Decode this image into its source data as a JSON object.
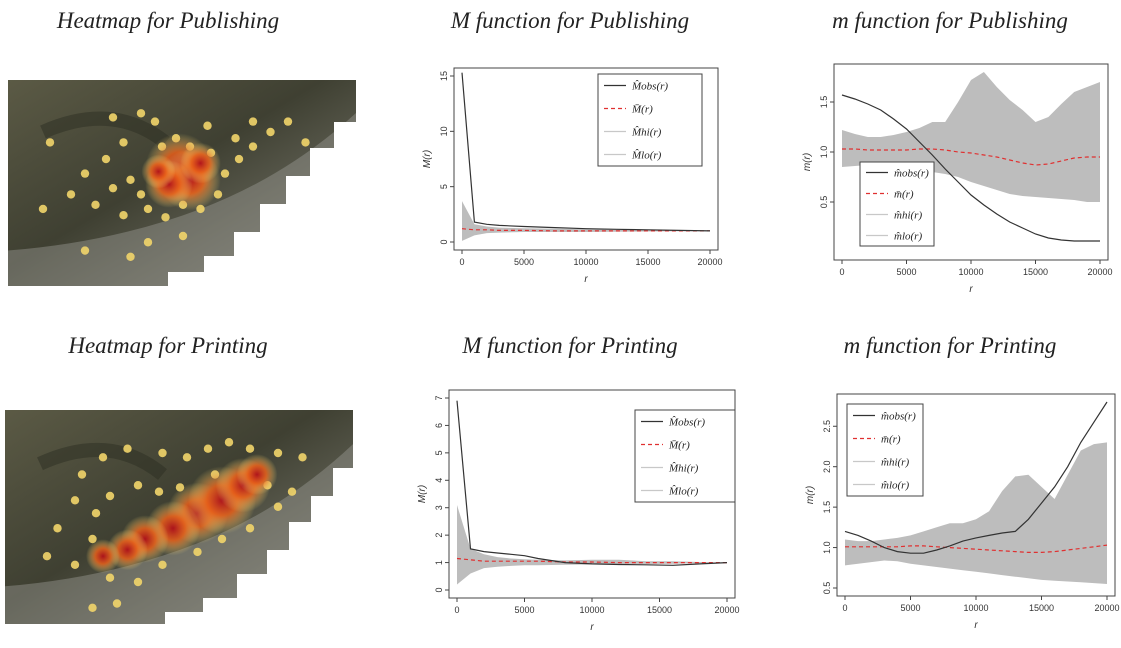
{
  "captions": {
    "heat_pub": "Heatmap for Publishing",
    "M_pub": "M function for Publishing",
    "m_pub": "m function for Publishing",
    "heat_print": "Heatmap for Printing",
    "M_print": "M function for Printing",
    "m_print": "m function for Printing"
  },
  "colors": {
    "observed": "#333333",
    "theoretical": "#e03030",
    "envelope": "#bdbdbd",
    "heat_low": "#f5e27a",
    "heat_high": "#b0101a"
  },
  "chart_data": [
    {
      "id": "M_pub",
      "type": "line",
      "xlabel": "r",
      "ylabel": "M(r)",
      "xlim": [
        0,
        20000
      ],
      "ylim": [
        0,
        15
      ],
      "xticks": [
        0,
        5000,
        10000,
        15000,
        20000
      ],
      "yticks": [
        0,
        5,
        10,
        15
      ],
      "legend_position": "top-right",
      "legend": [
        "M̂obs(r)",
        "M̄(r)",
        "M̂hi(r)",
        "M̂lo(r)"
      ],
      "x": [
        0,
        1000,
        2000,
        3000,
        5000,
        7500,
        10000,
        12500,
        15000,
        17500,
        20000
      ],
      "series": [
        {
          "name": "M̂obs(r)",
          "values": [
            15.3,
            1.8,
            1.6,
            1.5,
            1.4,
            1.3,
            1.2,
            1.15,
            1.1,
            1.05,
            1.0
          ]
        },
        {
          "name": "M̄(r)",
          "values": [
            1.2,
            1.1,
            1.1,
            1.05,
            1.05,
            1.0,
            1.0,
            1.0,
            1.0,
            1.0,
            1.0
          ]
        },
        {
          "name": "M̂hi(r)",
          "values": [
            3.7,
            1.6,
            1.4,
            1.3,
            1.25,
            1.2,
            1.15,
            1.1,
            1.05,
            1.05,
            1.0
          ]
        },
        {
          "name": "M̂lo(r)",
          "values": [
            0.1,
            0.6,
            0.8,
            0.85,
            0.9,
            0.9,
            0.9,
            0.92,
            0.95,
            0.97,
            1.0
          ]
        }
      ]
    },
    {
      "id": "m_pub",
      "type": "line",
      "xlabel": "r",
      "ylabel": "m(r)",
      "xlim": [
        0,
        20000
      ],
      "ylim": [
        0,
        1.8
      ],
      "xticks": [
        0,
        5000,
        10000,
        15000,
        20000
      ],
      "yticks": [
        0.5,
        1.0,
        1.5
      ],
      "legend_position": "bottom-left",
      "legend": [
        "m̂obs(r)",
        "m̄(r)",
        "m̂hi(r)",
        "m̂lo(r)"
      ],
      "x": [
        0,
        1000,
        2000,
        3000,
        4000,
        5000,
        6000,
        7000,
        8000,
        9000,
        10000,
        11000,
        12000,
        13000,
        14000,
        15000,
        16000,
        17000,
        18000,
        19000,
        20000
      ],
      "series": [
        {
          "name": "m̂obs(r)",
          "values": [
            1.57,
            1.53,
            1.48,
            1.42,
            1.33,
            1.23,
            1.1,
            0.97,
            0.83,
            0.7,
            0.57,
            0.47,
            0.38,
            0.3,
            0.24,
            0.18,
            0.14,
            0.12,
            0.11,
            0.11,
            0.11
          ]
        },
        {
          "name": "m̄(r)",
          "values": [
            1.03,
            1.03,
            1.02,
            1.02,
            1.02,
            1.02,
            1.03,
            1.03,
            1.02,
            1.0,
            0.99,
            0.97,
            0.95,
            0.92,
            0.89,
            0.87,
            0.88,
            0.91,
            0.94,
            0.95,
            0.95
          ]
        },
        {
          "name": "m̂hi(r)",
          "values": [
            1.22,
            1.18,
            1.15,
            1.15,
            1.17,
            1.2,
            1.24,
            1.3,
            1.3,
            1.5,
            1.72,
            1.8,
            1.65,
            1.52,
            1.42,
            1.3,
            1.35,
            1.48,
            1.6,
            1.65,
            1.7
          ]
        },
        {
          "name": "m̂lo(r)",
          "values": [
            0.85,
            0.86,
            0.87,
            0.87,
            0.86,
            0.84,
            0.82,
            0.8,
            0.78,
            0.75,
            0.7,
            0.66,
            0.62,
            0.58,
            0.56,
            0.55,
            0.54,
            0.53,
            0.52,
            0.5,
            0.5
          ]
        }
      ]
    },
    {
      "id": "M_print",
      "type": "line",
      "xlabel": "r",
      "ylabel": "M(r)",
      "xlim": [
        0,
        20000
      ],
      "ylim": [
        0,
        7
      ],
      "xticks": [
        0,
        5000,
        10000,
        15000,
        20000
      ],
      "yticks": [
        0,
        1,
        2,
        3,
        4,
        5,
        6,
        7
      ],
      "legend_position": "top-right",
      "legend": [
        "M̂obs(r)",
        "M̄(r)",
        "M̂hi(r)",
        "M̂lo(r)"
      ],
      "x": [
        0,
        1000,
        2000,
        3000,
        4000,
        5000,
        6000,
        8000,
        10000,
        12000,
        14000,
        16000,
        18000,
        20000
      ],
      "series": [
        {
          "name": "M̂obs(r)",
          "values": [
            6.9,
            1.5,
            1.4,
            1.35,
            1.3,
            1.25,
            1.15,
            1.0,
            0.95,
            0.93,
            0.92,
            0.9,
            0.95,
            1.0
          ]
        },
        {
          "name": "M̄(r)",
          "values": [
            1.15,
            1.1,
            1.05,
            1.05,
            1.05,
            1.05,
            1.05,
            1.02,
            1.02,
            1.0,
            1.0,
            1.0,
            1.0,
            1.0
          ]
        },
        {
          "name": "M̂hi(r)",
          "values": [
            3.1,
            1.5,
            1.3,
            1.2,
            1.15,
            1.12,
            1.1,
            1.08,
            1.1,
            1.1,
            1.05,
            1.05,
            1.02,
            1.0
          ]
        },
        {
          "name": "M̂lo(r)",
          "values": [
            0.2,
            0.6,
            0.8,
            0.85,
            0.88,
            0.9,
            0.9,
            0.92,
            0.93,
            0.95,
            0.95,
            0.96,
            0.98,
            1.0
          ]
        }
      ]
    },
    {
      "id": "m_print",
      "type": "line",
      "xlabel": "r",
      "ylabel": "m(r)",
      "xlim": [
        0,
        20000
      ],
      "ylim": [
        0.5,
        2.8
      ],
      "xticks": [
        0,
        5000,
        10000,
        15000,
        20000
      ],
      "yticks": [
        0.5,
        1.0,
        1.5,
        2.0,
        2.5
      ],
      "legend_position": "top-left",
      "legend": [
        "m̂obs(r)",
        "m̄(r)",
        "m̂hi(r)",
        "m̂lo(r)"
      ],
      "x": [
        0,
        1000,
        2000,
        3000,
        4000,
        5000,
        6000,
        7000,
        8000,
        9000,
        10000,
        11000,
        12000,
        13000,
        14000,
        15000,
        16000,
        17000,
        18000,
        19000,
        20000
      ],
      "series": [
        {
          "name": "m̂obs(r)",
          "values": [
            1.2,
            1.15,
            1.08,
            1.0,
            0.95,
            0.93,
            0.93,
            0.97,
            1.02,
            1.08,
            1.12,
            1.15,
            1.18,
            1.2,
            1.35,
            1.55,
            1.75,
            2.0,
            2.3,
            2.55,
            2.8
          ]
        },
        {
          "name": "m̄(r)",
          "values": [
            1.01,
            1.01,
            1.01,
            1.01,
            1.01,
            1.02,
            1.02,
            1.01,
            1.0,
            0.99,
            0.98,
            0.97,
            0.96,
            0.95,
            0.94,
            0.94,
            0.95,
            0.97,
            0.99,
            1.01,
            1.03
          ]
        },
        {
          "name": "m̂hi(r)",
          "values": [
            1.1,
            1.08,
            1.08,
            1.1,
            1.12,
            1.15,
            1.2,
            1.25,
            1.3,
            1.3,
            1.35,
            1.45,
            1.7,
            1.88,
            1.9,
            1.75,
            1.6,
            1.9,
            2.2,
            2.28,
            2.3
          ]
        },
        {
          "name": "m̂lo(r)",
          "values": [
            0.78,
            0.8,
            0.82,
            0.84,
            0.83,
            0.8,
            0.78,
            0.76,
            0.74,
            0.72,
            0.7,
            0.68,
            0.66,
            0.64,
            0.62,
            0.6,
            0.59,
            0.58,
            0.57,
            0.56,
            0.55
          ]
        }
      ]
    }
  ],
  "heatmaps": [
    {
      "id": "heat_pub",
      "hotspots": [
        [
          0.49,
          0.42,
          1.0
        ],
        [
          0.52,
          0.48,
          0.9
        ],
        [
          0.46,
          0.5,
          0.7
        ],
        [
          0.55,
          0.4,
          0.6
        ],
        [
          0.43,
          0.44,
          0.5
        ]
      ],
      "points": [
        [
          0.3,
          0.18
        ],
        [
          0.38,
          0.16
        ],
        [
          0.42,
          0.2
        ],
        [
          0.33,
          0.3
        ],
        [
          0.28,
          0.38
        ],
        [
          0.22,
          0.45
        ],
        [
          0.18,
          0.55
        ],
        [
          0.25,
          0.6
        ],
        [
          0.3,
          0.52
        ],
        [
          0.35,
          0.48
        ],
        [
          0.38,
          0.55
        ],
        [
          0.33,
          0.65
        ],
        [
          0.4,
          0.62
        ],
        [
          0.45,
          0.66
        ],
        [
          0.5,
          0.6
        ],
        [
          0.58,
          0.35
        ],
        [
          0.62,
          0.45
        ],
        [
          0.66,
          0.38
        ],
        [
          0.7,
          0.32
        ],
        [
          0.75,
          0.25
        ],
        [
          0.8,
          0.2
        ],
        [
          0.85,
          0.3
        ],
        [
          0.6,
          0.55
        ],
        [
          0.55,
          0.62
        ],
        [
          0.48,
          0.28
        ],
        [
          0.44,
          0.32
        ],
        [
          0.12,
          0.3
        ],
        [
          0.1,
          0.62
        ],
        [
          0.4,
          0.78
        ],
        [
          0.5,
          0.75
        ],
        [
          0.22,
          0.82
        ],
        [
          0.35,
          0.85
        ],
        [
          0.7,
          0.2
        ],
        [
          0.65,
          0.28
        ],
        [
          0.57,
          0.22
        ],
        [
          0.52,
          0.32
        ]
      ]
    },
    {
      "id": "heat_print",
      "hotspots": [
        [
          0.55,
          0.48,
          0.9
        ],
        [
          0.62,
          0.42,
          1.0
        ],
        [
          0.48,
          0.55,
          0.8
        ],
        [
          0.68,
          0.35,
          0.8
        ],
        [
          0.4,
          0.6,
          0.7
        ],
        [
          0.72,
          0.3,
          0.6
        ],
        [
          0.35,
          0.65,
          0.6
        ],
        [
          0.28,
          0.68,
          0.5
        ]
      ],
      "points": [
        [
          0.22,
          0.3
        ],
        [
          0.28,
          0.22
        ],
        [
          0.35,
          0.18
        ],
        [
          0.45,
          0.2
        ],
        [
          0.52,
          0.22
        ],
        [
          0.58,
          0.18
        ],
        [
          0.64,
          0.15
        ],
        [
          0.7,
          0.18
        ],
        [
          0.78,
          0.2
        ],
        [
          0.85,
          0.22
        ],
        [
          0.2,
          0.42
        ],
        [
          0.26,
          0.48
        ],
        [
          0.3,
          0.4
        ],
        [
          0.38,
          0.35
        ],
        [
          0.44,
          0.38
        ],
        [
          0.5,
          0.36
        ],
        [
          0.25,
          0.6
        ],
        [
          0.2,
          0.72
        ],
        [
          0.3,
          0.78
        ],
        [
          0.38,
          0.8
        ],
        [
          0.45,
          0.72
        ],
        [
          0.55,
          0.66
        ],
        [
          0.62,
          0.6
        ],
        [
          0.7,
          0.55
        ],
        [
          0.78,
          0.45
        ],
        [
          0.82,
          0.38
        ],
        [
          0.15,
          0.55
        ],
        [
          0.12,
          0.68
        ],
        [
          0.32,
          0.9
        ],
        [
          0.25,
          0.92
        ],
        [
          0.75,
          0.35
        ],
        [
          0.6,
          0.3
        ]
      ]
    }
  ]
}
